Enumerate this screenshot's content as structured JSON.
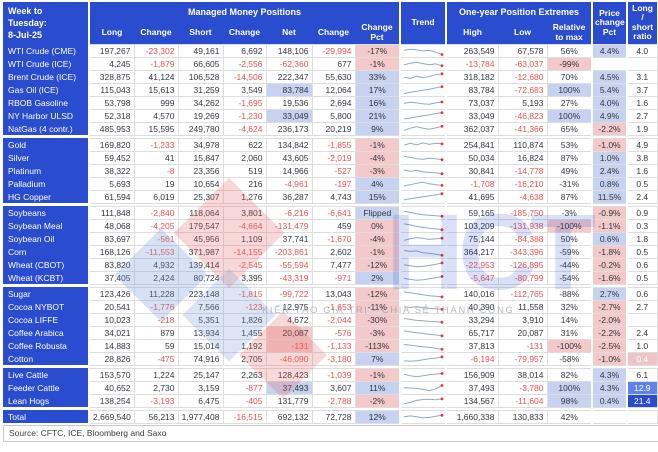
{
  "header": {
    "week_label": "Week to Tuesday:",
    "week_date": "8-Jul-25",
    "managed_money_title": "Managed Money Positions",
    "extremes_title": "One-year Position Extremes",
    "columns": {
      "long": "Long",
      "change": "Change",
      "short": "Short",
      "net": "Net",
      "change_pct": "Change Pct",
      "trend": "Trend",
      "high": "High",
      "low": "Low",
      "relative_to_max": "Relative to max",
      "price_change_pct": "Price change Pct",
      "long_short_ratio": "Long / short ratio"
    }
  },
  "footer": {
    "source": "Source: CFTC, ICE, Bloomberg and Saxo"
  },
  "watermark": {
    "letters": "HCT",
    "slogan": "KIẾN TẠO GIÁ TRỊ - CHIA SẺ THÀNH CÔNG"
  },
  "colors": {
    "header_blue": "#2a4ccf",
    "positive_bg": "#c6d2f0",
    "negative_bg": "#f4c9c9",
    "negative_text": "#e85252",
    "ratio_mid_blue": "#5f82e6",
    "ratio_dark_blue": "#2a4ccf",
    "sparkline": "#93a9c4",
    "sparkline_dot": "#e03434"
  },
  "chart_data": {
    "type": "table",
    "title": "Managed Money Positions — Week to Tuesday: 8-Jul-25",
    "columns": [
      "Instrument",
      "Long",
      "Change",
      "Short",
      "Change",
      "Net",
      "Change",
      "Change Pct",
      "Trend",
      "High",
      "Low",
      "Relative to max",
      "Price change Pct",
      "Long / short ratio"
    ],
    "rows": [
      {
        "label": "WTI Crude (CME)",
        "long": "197,267",
        "long_chg": "-23,302",
        "short": "49,161",
        "short_chg": "6,692",
        "net": "148,106",
        "net_chg": "-29,994",
        "chg_pct": "-17%",
        "trend": [
          62,
          72,
          66,
          55,
          60,
          42,
          18
        ],
        "high": "263,549",
        "low": "67,578",
        "rel_max": "56%",
        "price_chg": "4.4%",
        "ratio": "4.0",
        "hl": {
          "pct": "neg",
          "price": "pos"
        }
      },
      {
        "label": "WTI Crude (ICE)",
        "long": "4,245",
        "long_chg": "-1,879",
        "short": "66,605",
        "short_chg": "-2,556",
        "net": "-62,360",
        "net_chg": "677",
        "chg_pct": "-1%",
        "trend": [
          45,
          62,
          72,
          58,
          46,
          55,
          35
        ],
        "high": "-13,784",
        "low": "-63,037",
        "rel_max": "-99%",
        "price_chg": "",
        "ratio": "",
        "hl": {
          "pct": "neg",
          "rel": "neg"
        }
      },
      {
        "label": "Brent Crude (ICE)",
        "long": "328,875",
        "long_chg": "41,124",
        "short": "106,528",
        "short_chg": "-14,506",
        "net": "222,347",
        "net_chg": "55,630",
        "chg_pct": "33%",
        "trend": [
          52,
          40,
          62,
          48,
          58,
          78,
          88
        ],
        "high": "318,182",
        "low": "-12,680",
        "rel_max": "70%",
        "price_chg": "4.5%",
        "ratio": "3.1",
        "hl": {
          "pct": "pos",
          "price": "pos"
        }
      },
      {
        "label": "Gas Oil (ICE)",
        "long": "115,043",
        "long_chg": "15,613",
        "short": "31,259",
        "short_chg": "3,549",
        "net": "83,784",
        "net_chg": "12,064",
        "chg_pct": "17%",
        "trend": [
          18,
          30,
          42,
          52,
          62,
          76,
          90
        ],
        "high": "83,784",
        "low": "-72,683",
        "rel_max": "100%",
        "price_chg": "5.4%",
        "ratio": "3.7",
        "hl": {
          "net": "pos",
          "pct": "pos",
          "rel": "pos",
          "price": "pos"
        }
      },
      {
        "label": "RBOB Gasoline",
        "long": "53,798",
        "long_chg": "999",
        "short": "34,262",
        "short_chg": "-1,695",
        "net": "19,536",
        "net_chg": "2,694",
        "chg_pct": "16%",
        "trend": [
          50,
          62,
          55,
          45,
          42,
          55,
          65
        ],
        "high": "73,037",
        "low": "5,193",
        "rel_max": "27%",
        "price_chg": "4.0%",
        "ratio": "1.6",
        "hl": {
          "pct": "pos",
          "price": "pos"
        }
      },
      {
        "label": "NY Harbor ULSD",
        "long": "52,318",
        "long_chg": "4,570",
        "short": "19,269",
        "short_chg": "-1,230",
        "net": "33,049",
        "net_chg": "5,800",
        "chg_pct": "21%",
        "trend": [
          25,
          32,
          46,
          56,
          66,
          80,
          90
        ],
        "high": "33,049",
        "low": "-46,823",
        "rel_max": "100%",
        "price_chg": "4.9%",
        "ratio": "2.7",
        "hl": {
          "net": "pos",
          "pct": "pos",
          "rel": "pos",
          "price": "pos"
        }
      },
      {
        "label": "NatGas (4 contr.)",
        "long": "485,953",
        "long_chg": "15,595",
        "short": "249,780",
        "short_chg": "-4,624",
        "net": "236,173",
        "net_chg": "20,219",
        "chg_pct": "9%",
        "trend": [
          40,
          62,
          78,
          62,
          52,
          66,
          82
        ],
        "high": "362,037",
        "low": "-41,366",
        "rel_max": "65%",
        "price_chg": "-2.2%",
        "ratio": "1.9",
        "hl": {
          "pct": "pos",
          "price": "neg"
        }
      },
      {
        "label": "Gold",
        "sep": true,
        "long": "169,820",
        "long_chg": "-1,233",
        "short": "34,978",
        "short_chg": "622",
        "net": "134,842",
        "net_chg": "-1,855",
        "chg_pct": "-1%",
        "trend": [
          52,
          72,
          56,
          76,
          60,
          72,
          66
        ],
        "high": "254,841",
        "low": "110,874",
        "rel_max": "53%",
        "price_chg": "-1.0%",
        "ratio": "4.9",
        "hl": {
          "pct": "neg",
          "price": "neg"
        }
      },
      {
        "label": "Silver",
        "long": "59,452",
        "long_chg": "41",
        "short": "15,847",
        "short_chg": "2,060",
        "net": "43,605",
        "net_chg": "-2,019",
        "chg_pct": "-4%",
        "trend": [
          72,
          60,
          46,
          42,
          52,
          46,
          36
        ],
        "high": "50,034",
        "low": "16,824",
        "rel_max": "87%",
        "price_chg": "1.0%",
        "ratio": "3.8",
        "hl": {
          "pct": "neg",
          "price": "pos"
        }
      },
      {
        "label": "Platinum",
        "long": "38,322",
        "long_chg": "-8",
        "short": "23,356",
        "short_chg": "519",
        "net": "14,966",
        "net_chg": "-527",
        "chg_pct": "-3%",
        "trend": [
          66,
          50,
          60,
          46,
          40,
          36,
          26
        ],
        "high": "30,841",
        "low": "-14,778",
        "rel_max": "49%",
        "price_chg": "2.4%",
        "ratio": "1.6",
        "hl": {
          "pct": "neg",
          "price": "pos"
        }
      },
      {
        "label": "Palladium",
        "long": "5,693",
        "long_chg": "19",
        "short": "10,654",
        "short_chg": "216",
        "net": "-4,961",
        "net_chg": "-197",
        "chg_pct": "4%",
        "trend": [
          36,
          46,
          62,
          72,
          56,
          46,
          40
        ],
        "high": "-1,708",
        "low": "-16,210",
        "rel_max": "-31%",
        "price_chg": "0.8%",
        "ratio": "0.5",
        "hl": {
          "pct": "pos",
          "price": "pos"
        }
      },
      {
        "label": "HG Copper",
        "long": "61,594",
        "long_chg": "6,019",
        "short": "25,307",
        "short_chg": "1,276",
        "net": "36,287",
        "net_chg": "4,743",
        "chg_pct": "15%",
        "trend": [
          26,
          36,
          46,
          56,
          66,
          76,
          90
        ],
        "high": "41,695",
        "low": "-4,638",
        "rel_max": "87%",
        "price_chg": "11.5%",
        "ratio": "2.4",
        "hl": {
          "pct": "pos",
          "price": "pos"
        }
      },
      {
        "label": "Soybeans",
        "sep": true,
        "long": "111,848",
        "long_chg": "-2,840",
        "short": "118,064",
        "short_chg": "3,801",
        "net": "-6,216",
        "net_chg": "-6,641",
        "chg_pct": "Flipped",
        "trend": [
          72,
          60,
          46,
          36,
          30,
          26,
          20
        ],
        "high": "59,165",
        "low": "-185,750",
        "rel_max": "-3%",
        "price_chg": "-0.9%",
        "ratio": "0.9",
        "hl": {
          "pct": "pos",
          "price": "neg"
        }
      },
      {
        "label": "Soybean Meal",
        "long": "48,068",
        "long_chg": "-4,205",
        "short": "179,547",
        "short_chg": "-4,664",
        "net": "-131,479",
        "net_chg": "459",
        "chg_pct": "0%",
        "trend": [
          76,
          66,
          50,
          40,
          30,
          26,
          16
        ],
        "high": "103,209",
        "low": "-131,938",
        "rel_max": "-100%",
        "price_chg": "-1.1%",
        "ratio": "0.3",
        "hl": {
          "pct": "neg",
          "rel": "neg",
          "price": "neg"
        }
      },
      {
        "label": "Soybean Oil",
        "long": "83,697",
        "long_chg": "-561",
        "short": "45,956",
        "short_chg": "1,109",
        "net": "37,741",
        "net_chg": "-1,670",
        "chg_pct": "-4%",
        "trend": [
          40,
          56,
          70,
          60,
          50,
          56,
          62
        ],
        "high": "75,144",
        "low": "-84,388",
        "rel_max": "50%",
        "price_chg": "0.6%",
        "ratio": "1.8",
        "hl": {
          "pct": "neg",
          "price": "pos"
        }
      },
      {
        "label": "Corn",
        "long": "168,126",
        "long_chg": "-11,553",
        "short": "371,987",
        "short_chg": "-14,155",
        "net": "-203,861",
        "net_chg": "2,602",
        "chg_pct": "-1%",
        "trend": [
          70,
          60,
          66,
          46,
          40,
          30,
          20
        ],
        "high": "364,217",
        "low": "-343,396",
        "rel_max": "-59%",
        "price_chg": "-1.8%",
        "ratio": "0.5",
        "hl": {
          "pct": "neg",
          "price": "neg"
        }
      },
      {
        "label": "Wheat (CBOT)",
        "long": "83,820",
        "long_chg": "4,932",
        "short": "139,414",
        "short_chg": "-2,545",
        "net": "-55,594",
        "net_chg": "7,477",
        "chg_pct": "-12%",
        "trend": [
          56,
          46,
          36,
          40,
          50,
          60,
          76
        ],
        "high": "-22,953",
        "low": "-126,895",
        "rel_max": "-44%",
        "price_chg": "-0.2%",
        "ratio": "0.6",
        "hl": {
          "pct": "neg",
          "price": "neg"
        }
      },
      {
        "label": "Wheat (KCBT)",
        "long": "37,405",
        "long_chg": "2,424",
        "short": "80,724",
        "short_chg": "3,395",
        "net": "-43,319",
        "net_chg": "-971",
        "chg_pct": "2%",
        "trend": [
          50,
          40,
          30,
          36,
          46,
          56,
          70
        ],
        "high": "-5,647",
        "low": "-80,799",
        "rel_max": "-54%",
        "price_chg": "-1.6%",
        "ratio": "0.5",
        "hl": {
          "pct": "pos",
          "price": "neg"
        }
      },
      {
        "label": "Sugar",
        "sep": true,
        "long": "123,426",
        "long_chg": "11,228",
        "short": "223,148",
        "short_chg": "-1,815",
        "net": "-99,722",
        "net_chg": "13,043",
        "chg_pct": "-12%",
        "trend": [
          76,
          66,
          56,
          46,
          36,
          30,
          24
        ],
        "high": "140,016",
        "low": "-112,765",
        "rel_max": "-88%",
        "price_chg": "2.7%",
        "ratio": "0.6",
        "hl": {
          "pct": "neg",
          "price": "pos"
        }
      },
      {
        "label": "Cocoa NYBOT",
        "long": "20,541",
        "long_chg": "-1,776",
        "short": "7,566",
        "short_chg": "-123",
        "net": "12,975",
        "net_chg": "-1,653",
        "chg_pct": "-11%",
        "trend": [
          56,
          50,
          56,
          46,
          40,
          36,
          30
        ],
        "high": "40,390",
        "low": "11,558",
        "rel_max": "32%",
        "price_chg": "-2.7%",
        "ratio": "2.7",
        "hl": {
          "pct": "neg",
          "price": "neg"
        }
      },
      {
        "label": "Cocoa LIFFE",
        "long": "10,023",
        "long_chg": "-218",
        "short": "5,351",
        "short_chg": "1,826",
        "net": "4,672",
        "net_chg": "-2,044",
        "chg_pct": "-30%",
        "trend": [
          70,
          60,
          50,
          46,
          40,
          36,
          30
        ],
        "high": "33,294",
        "low": "3,910",
        "rel_max": "14%",
        "price_chg": "-2.0%",
        "ratio": "",
        "hl": {
          "pct": "neg",
          "price": "neg"
        }
      },
      {
        "label": "Coffee Arabica",
        "long": "34,021",
        "long_chg": "879",
        "short": "13,934",
        "short_chg": "1,455",
        "net": "20,087",
        "net_chg": "-576",
        "chg_pct": "-3%",
        "trend": [
          76,
          66,
          56,
          50,
          40,
          34,
          24
        ],
        "high": "65,717",
        "low": "20,087",
        "rel_max": "31%",
        "price_chg": "-2.2%",
        "ratio": "2.4",
        "hl": {
          "net": "neg",
          "pct": "neg",
          "price": "neg"
        }
      },
      {
        "label": "Coffee Robusta",
        "long": "14,883",
        "long_chg": "59",
        "short": "15,014",
        "short_chg": "1,192",
        "net": "-131",
        "net_chg": "-1,133",
        "chg_pct": "-113%",
        "trend": [
          70,
          64,
          54,
          46,
          40,
          30,
          20
        ],
        "high": "37,813",
        "low": "-131",
        "rel_max": "-100%",
        "price_chg": "-2.5%",
        "ratio": "1.0",
        "hl": {
          "net": "neg",
          "pct": "neg",
          "rel": "neg",
          "price": "neg"
        }
      },
      {
        "label": "Cotton",
        "long": "28,826",
        "long_chg": "-475",
        "short": "74,916",
        "short_chg": "2,705",
        "net": "-46,090",
        "net_chg": "-3,180",
        "chg_pct": "7%",
        "trend": [
          36,
          30,
          36,
          46,
          56,
          64,
          76
        ],
        "high": "-6,194",
        "low": "-79,957",
        "rel_max": "-58%",
        "price_chg": "-1.0%",
        "ratio": "0.4",
        "hl": {
          "pct": "pos",
          "price": "neg",
          "ratio": "pink"
        }
      },
      {
        "label": "Live Cattle",
        "sep": true,
        "long": "153,570",
        "long_chg": "1,224",
        "short": "25,147",
        "short_chg": "2,263",
        "net": "128,423",
        "net_chg": "-1,039",
        "chg_pct": "-1%",
        "trend": [
          64,
          46,
          36,
          46,
          56,
          64,
          70
        ],
        "high": "156,909",
        "low": "38,014",
        "rel_max": "82%",
        "price_chg": "4.3%",
        "ratio": "6.1",
        "hl": {
          "pct": "neg",
          "price": "pos"
        }
      },
      {
        "label": "Feeder Cattle",
        "long": "40,652",
        "long_chg": "2,730",
        "short": "3,159",
        "short_chg": "-877",
        "net": "37,493",
        "net_chg": "3,607",
        "chg_pct": "11%",
        "trend": [
          56,
          54,
          50,
          40,
          26,
          46,
          80
        ],
        "high": "37,493",
        "low": "-3,780",
        "rel_max": "100%",
        "price_chg": "4.3%",
        "ratio": "12.9",
        "hl": {
          "net": "pos",
          "pct": "pos",
          "rel": "pos",
          "price": "pos",
          "ratio": "mid"
        }
      },
      {
        "label": "Lean Hogs",
        "long": "138,254",
        "long_chg": "-3,193",
        "short": "6,475",
        "short_chg": "-405",
        "net": "131,779",
        "net_chg": "-2,788",
        "chg_pct": "-2%",
        "trend": [
          26,
          40,
          60,
          70,
          72,
          68,
          76
        ],
        "high": "134,567",
        "low": "-11,604",
        "rel_max": "98%",
        "price_chg": "0.4%",
        "ratio": "21.4",
        "hl": {
          "pct": "neg",
          "rel": "pos",
          "price": "pos",
          "ratio": "dark"
        }
      },
      {
        "label": "Total",
        "sep": true,
        "long": "2,669,540",
        "long_chg": "56,213",
        "short": "1,977,408",
        "short_chg": "-16,515",
        "net": "692,132",
        "net_chg": "72,728",
        "chg_pct": "12%",
        "trend": [
          56,
          66,
          56,
          46,
          50,
          62,
          72
        ],
        "high": "1,660,338",
        "low": "130,833",
        "rel_max": "42%",
        "price_chg": "",
        "ratio": "",
        "hl": {
          "pct": "pos"
        }
      }
    ]
  }
}
